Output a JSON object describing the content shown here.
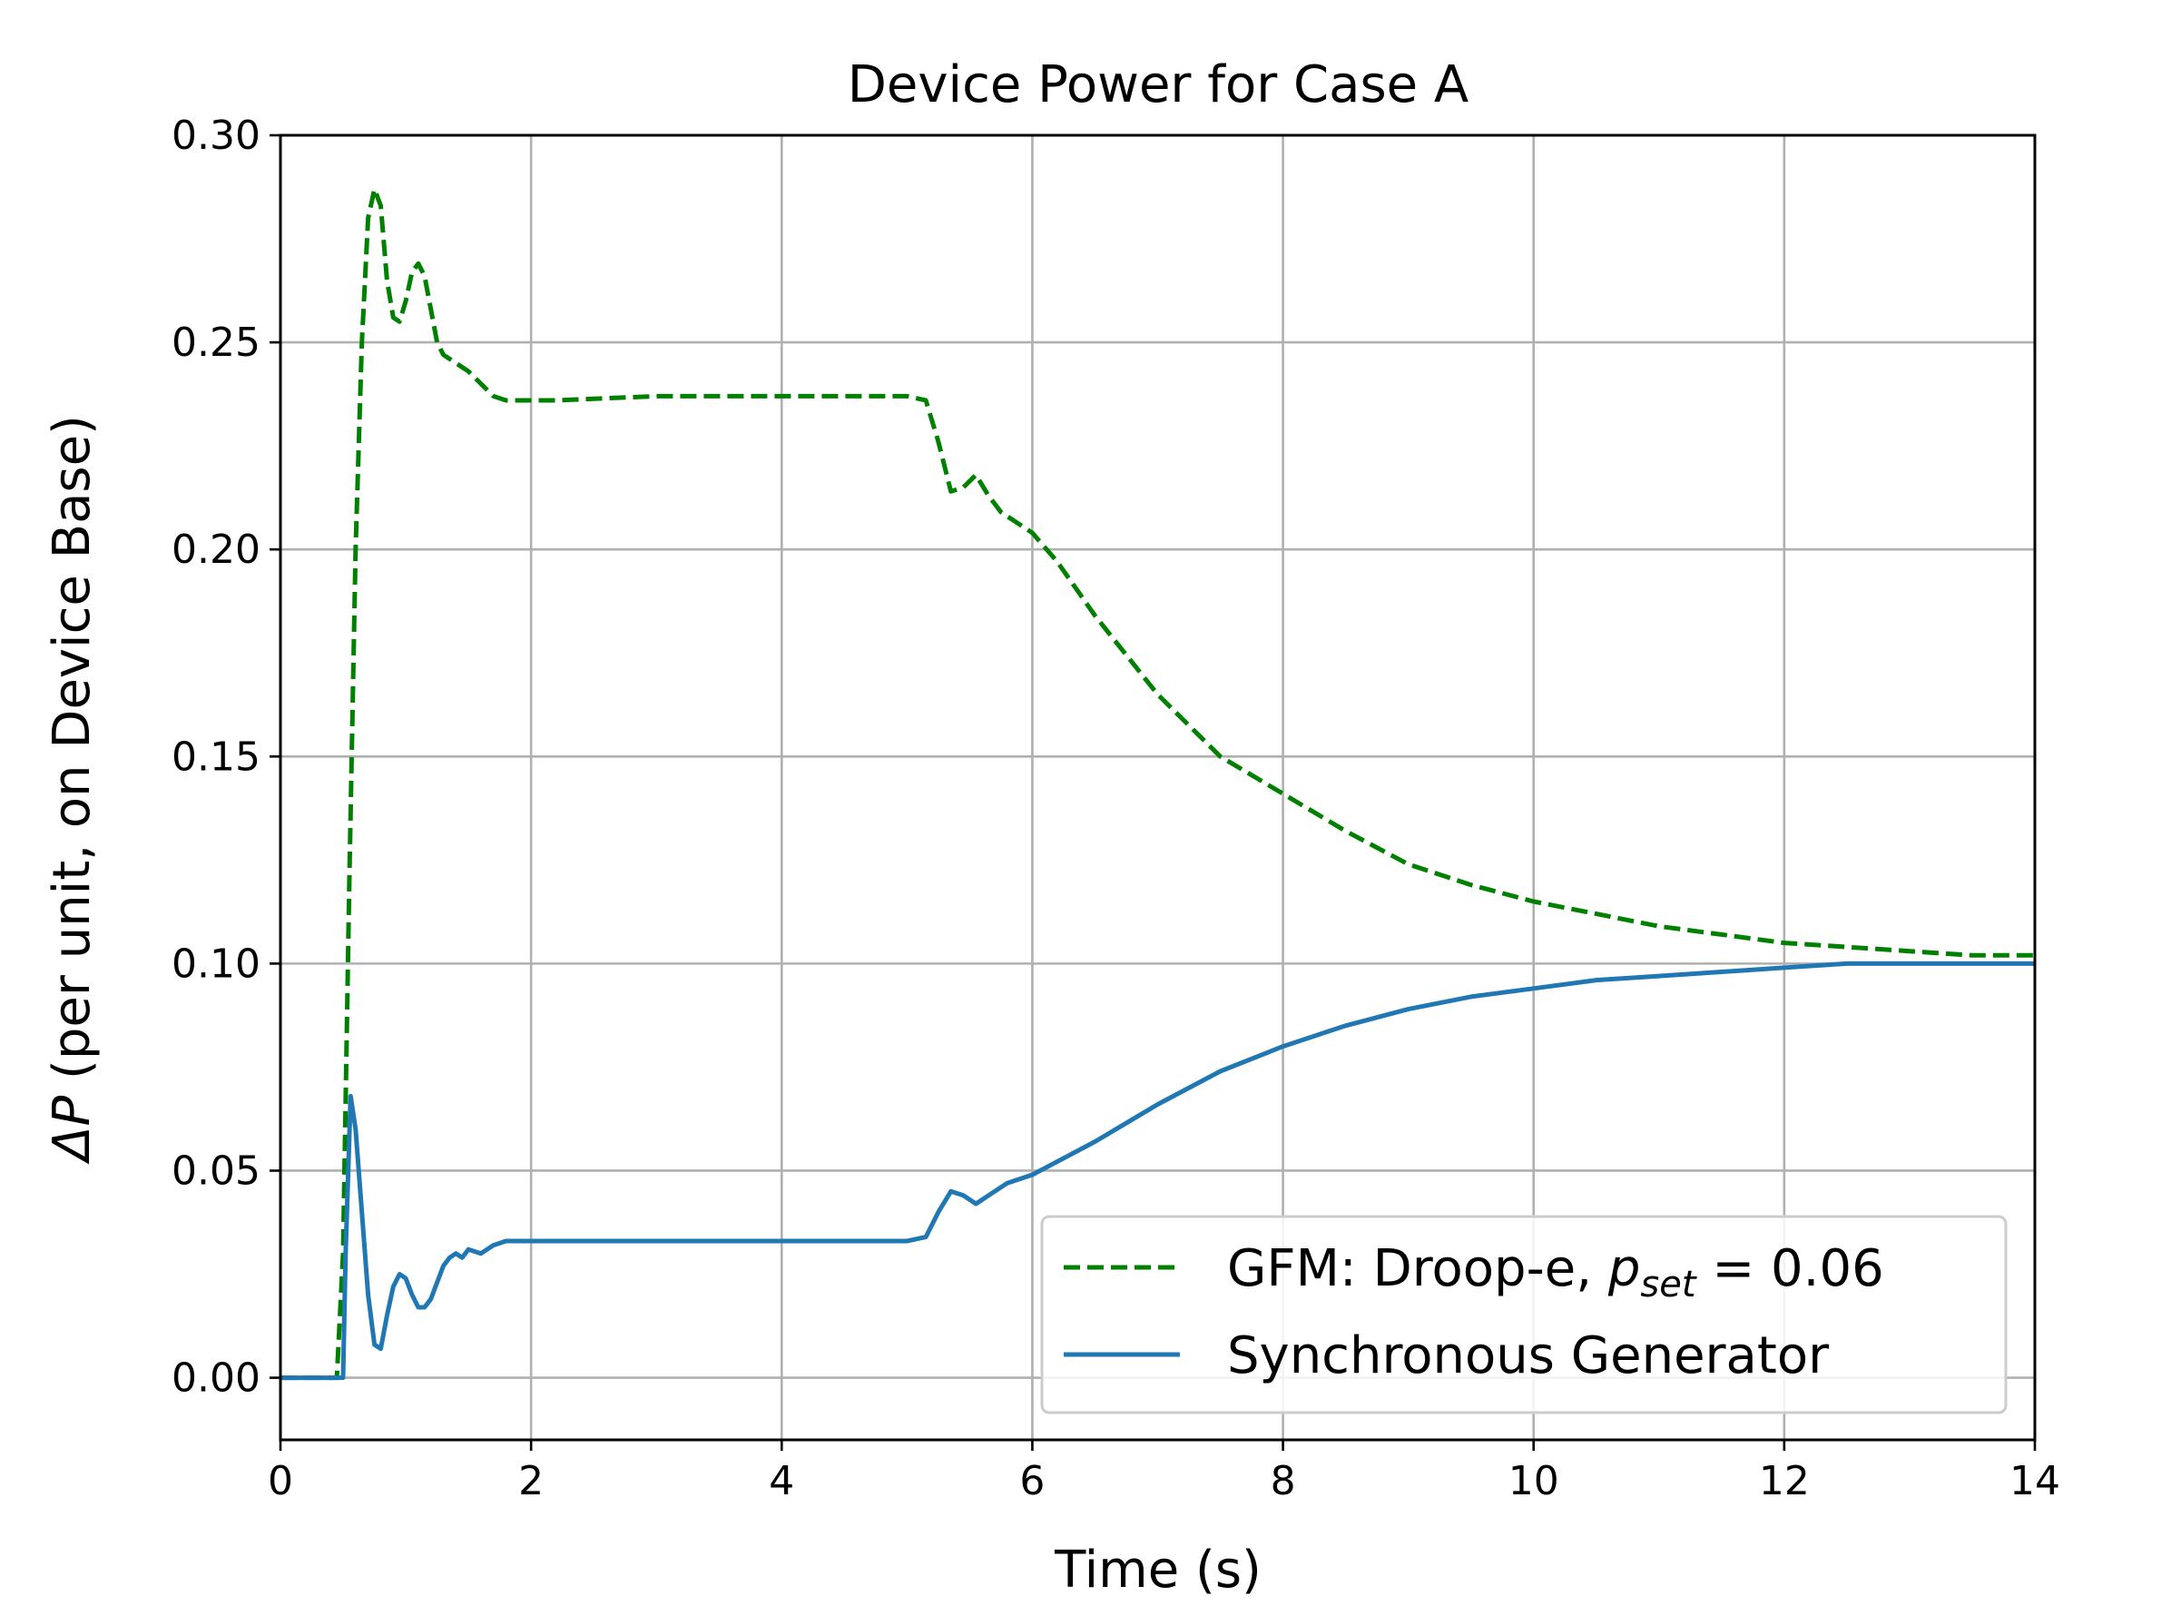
{
  "chart_data": {
    "type": "line",
    "title": "Device Power for Case A",
    "xlabel": "Time (s)",
    "ylabel": {
      "symbol": "ΔP",
      "text": " (per unit, on Device Base)"
    },
    "xlim": [
      0,
      14
    ],
    "ylim": [
      -0.015,
      0.3
    ],
    "xticks": [
      0,
      2,
      4,
      6,
      8,
      10,
      12,
      14
    ],
    "xtick_labels": [
      "0",
      "2",
      "4",
      "6",
      "8",
      "10",
      "12",
      "14"
    ],
    "yticks": [
      0.0,
      0.05,
      0.1,
      0.15,
      0.2,
      0.25,
      0.3
    ],
    "ytick_labels": [
      "0.00",
      "0.05",
      "0.10",
      "0.15",
      "0.20",
      "0.25",
      "0.30"
    ],
    "grid": true,
    "legend_position": "lower-right",
    "series": [
      {
        "name": "GFM: Droop-e, p_set = 0.06",
        "legend_label": {
          "prefix": "GFM: Droop-e, ",
          "symbol": "p",
          "subscript": "set",
          "suffix": " = 0.06"
        },
        "color": "#008000",
        "style": "dashed",
        "x": [
          0.0,
          0.45,
          0.5,
          0.55,
          0.6,
          0.65,
          0.7,
          0.75,
          0.8,
          0.85,
          0.9,
          0.95,
          1.0,
          1.05,
          1.1,
          1.15,
          1.2,
          1.25,
          1.3,
          1.35,
          1.4,
          1.5,
          1.6,
          1.7,
          1.8,
          2.0,
          2.2,
          3.0,
          4.0,
          5.0,
          5.15,
          5.25,
          5.35,
          5.45,
          5.55,
          5.65,
          5.75,
          5.9,
          6.0,
          6.2,
          6.5,
          7.0,
          7.5,
          8.0,
          8.5,
          9.0,
          9.5,
          10.0,
          10.5,
          11.0,
          11.5,
          12.0,
          12.5,
          13.0,
          13.5,
          14.0
        ],
        "y": [
          0.0,
          0.0,
          0.03,
          0.12,
          0.2,
          0.25,
          0.28,
          0.287,
          0.283,
          0.265,
          0.256,
          0.255,
          0.26,
          0.267,
          0.269,
          0.266,
          0.258,
          0.25,
          0.247,
          0.246,
          0.245,
          0.243,
          0.24,
          0.237,
          0.236,
          0.236,
          0.236,
          0.237,
          0.237,
          0.237,
          0.236,
          0.226,
          0.214,
          0.215,
          0.218,
          0.213,
          0.209,
          0.206,
          0.204,
          0.197,
          0.184,
          0.165,
          0.15,
          0.141,
          0.132,
          0.124,
          0.119,
          0.115,
          0.112,
          0.109,
          0.107,
          0.105,
          0.104,
          0.103,
          0.102,
          0.102
        ]
      },
      {
        "name": "Synchronous Generator",
        "legend_label": {
          "prefix": "Synchronous Generator",
          "symbol": "",
          "subscript": "",
          "suffix": ""
        },
        "color": "#1f77b4",
        "style": "solid",
        "x": [
          0.0,
          0.5,
          0.52,
          0.56,
          0.6,
          0.65,
          0.7,
          0.75,
          0.8,
          0.85,
          0.9,
          0.95,
          1.0,
          1.05,
          1.1,
          1.15,
          1.2,
          1.25,
          1.3,
          1.35,
          1.4,
          1.45,
          1.5,
          1.6,
          1.7,
          1.8,
          2.0,
          2.5,
          3.0,
          4.0,
          5.0,
          5.15,
          5.25,
          5.35,
          5.45,
          5.55,
          5.65,
          5.8,
          6.0,
          6.5,
          7.0,
          7.5,
          8.0,
          8.5,
          9.0,
          9.5,
          10.0,
          10.5,
          11.0,
          11.5,
          12.0,
          12.5,
          13.0,
          13.5,
          14.0
        ],
        "y": [
          0.0,
          0.0,
          0.03,
          0.068,
          0.06,
          0.04,
          0.02,
          0.008,
          0.007,
          0.015,
          0.022,
          0.025,
          0.024,
          0.02,
          0.017,
          0.017,
          0.019,
          0.023,
          0.027,
          0.029,
          0.03,
          0.029,
          0.031,
          0.03,
          0.032,
          0.033,
          0.033,
          0.033,
          0.033,
          0.033,
          0.033,
          0.034,
          0.04,
          0.045,
          0.044,
          0.042,
          0.044,
          0.047,
          0.049,
          0.057,
          0.066,
          0.074,
          0.08,
          0.085,
          0.089,
          0.092,
          0.094,
          0.096,
          0.097,
          0.098,
          0.099,
          0.1,
          0.1,
          0.1,
          0.1
        ]
      }
    ]
  }
}
